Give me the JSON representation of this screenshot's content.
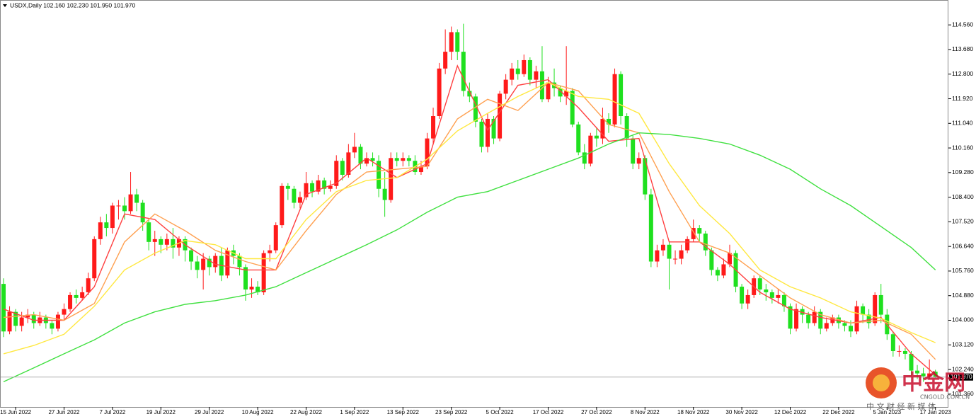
{
  "chart_data": {
    "type": "candlestick",
    "title": "USDX,Daily 102.160 102.230 101.950 101.970",
    "categories": [
      null,
      null,
      "15 Jun 2022",
      null,
      null,
      null,
      null,
      null,
      null,
      null,
      "27 Jun 2022",
      null,
      null,
      null,
      null,
      null,
      null,
      null,
      "7 Jul 2022",
      null,
      null,
      null,
      null,
      null,
      null,
      null,
      "19 Jul 2022",
      null,
      null,
      null,
      null,
      null,
      null,
      null,
      "29 Jul 2022",
      null,
      null,
      null,
      null,
      null,
      null,
      null,
      "10 Aug 2022",
      null,
      null,
      null,
      null,
      null,
      null,
      null,
      "22 Aug 2022",
      null,
      null,
      null,
      null,
      null,
      null,
      null,
      "1 Sep 2022",
      null,
      null,
      null,
      null,
      null,
      null,
      null,
      "13 Sep 2022",
      null,
      null,
      null,
      null,
      null,
      null,
      null,
      "23 Sep 2022",
      null,
      null,
      null,
      null,
      null,
      null,
      null,
      "5 Oct 2022",
      null,
      null,
      null,
      null,
      null,
      null,
      null,
      "17 Oct 2022",
      null,
      null,
      null,
      null,
      null,
      null,
      null,
      "27 Oct 2022",
      null,
      null,
      null,
      null,
      null,
      null,
      null,
      "8 Nov 2022",
      null,
      null,
      null,
      null,
      null,
      null,
      null,
      "18 Nov 2022",
      null,
      null,
      null,
      null,
      null,
      null,
      null,
      "30 Nov 2022",
      null,
      null,
      null,
      null,
      null,
      null,
      null,
      "12 Dec 2022",
      null,
      null,
      null,
      null,
      null,
      null,
      null,
      "22 Dec 2022",
      null,
      null,
      null,
      null,
      null,
      null,
      null,
      "5 Jan 2023",
      null,
      null,
      null,
      null,
      null,
      null,
      null,
      "17 Jan 2023"
    ],
    "open": [
      105.3,
      103.6,
      104.3,
      103.8,
      104.1,
      104.2,
      103.9,
      104.1,
      103.9,
      103.7,
      104.2,
      104.4,
      104.9,
      104.8,
      105.0,
      105.5,
      106.9,
      107.5,
      107.3,
      108.1,
      108.1,
      107.9,
      108.5,
      108.2,
      107.5,
      106.8,
      106.9,
      106.7,
      106.9,
      106.6,
      106.9,
      106.5,
      106.1,
      105.8,
      106.2,
      105.9,
      106.3,
      105.6,
      106.5,
      106.3,
      105.9,
      105.1,
      105.2,
      105.0,
      106.4,
      106.5,
      107.4,
      108.8,
      108.7,
      108.2,
      108.4,
      108.9,
      108.6,
      109.0,
      108.7,
      108.8,
      109.7,
      109.2,
      110.0,
      110.2,
      109.6,
      109.8,
      109.7,
      108.7,
      108.3,
      109.8,
      109.7,
      109.8,
      109.7,
      109.3,
      109.5,
      110.5,
      111.3,
      113.0,
      113.6,
      114.3,
      113.6,
      112.2,
      112.0,
      111.1,
      110.2,
      111.2,
      110.5,
      112.1,
      112.6,
      113.0,
      112.8,
      113.3,
      112.6,
      112.9,
      111.9,
      112.5,
      112.3,
      112.0,
      112.2,
      111.0,
      110.0,
      109.6,
      110.6,
      110.5,
      111.2,
      111.0,
      112.8,
      111.3,
      110.5,
      109.6,
      109.8,
      108.5,
      106.1,
      106.5,
      106.7,
      106.2,
      106.2,
      106.5,
      106.9,
      107.3,
      107.1,
      106.5,
      105.8,
      105.6,
      106.0,
      106.4,
      105.2,
      104.6,
      104.9,
      105.5,
      105.1,
      105.0,
      104.8,
      104.9,
      104.5,
      103.7,
      104.4,
      104.2,
      103.9,
      104.3,
      103.7,
      103.9,
      104.1,
      103.9,
      103.8,
      103.6,
      104.5,
      104.2,
      103.9,
      104.9,
      104.2,
      103.5,
      102.9,
      102.9,
      102.8,
      102.2,
      102.1,
      102.0,
      102.16
    ],
    "high": [
      105.5,
      104.5,
      104.4,
      104.3,
      104.4,
      104.3,
      104.3,
      104.2,
      104.0,
      104.3,
      104.6,
      105.0,
      105.1,
      105.2,
      105.7,
      107.0,
      107.7,
      107.8,
      108.2,
      108.3,
      108.4,
      109.3,
      108.7,
      108.3,
      107.6,
      107.2,
      107.0,
      107.1,
      107.3,
      107.0,
      107.0,
      106.6,
      106.3,
      106.4,
      106.3,
      106.4,
      106.6,
      106.6,
      106.7,
      106.4,
      106.0,
      105.5,
      105.4,
      106.5,
      106.7,
      107.5,
      108.9,
      108.9,
      108.8,
      108.6,
      109.3,
      109.0,
      109.2,
      109.1,
      109.0,
      109.9,
      109.8,
      110.3,
      110.7,
      110.3,
      110.0,
      110.0,
      109.9,
      109.3,
      110.0,
      110.0,
      110.0,
      109.9,
      109.9,
      109.7,
      110.7,
      111.6,
      113.2,
      114.4,
      114.5,
      114.4,
      114.6,
      112.5,
      112.1,
      111.2,
      111.4,
      111.3,
      112.2,
      112.8,
      113.2,
      113.3,
      113.5,
      113.4,
      113.1,
      113.8,
      112.7,
      113.0,
      112.4,
      113.8,
      112.3,
      111.1,
      110.3,
      110.7,
      110.9,
      111.6,
      111.4,
      113.0,
      112.9,
      111.4,
      110.6,
      110.0,
      109.9,
      108.7,
      106.7,
      106.9,
      106.8,
      106.5,
      106.7,
      107.0,
      107.6,
      107.4,
      107.2,
      106.6,
      105.9,
      106.2,
      106.7,
      106.5,
      105.3,
      105.1,
      105.6,
      105.6,
      105.3,
      105.1,
      105.1,
      105.0,
      104.6,
      104.6,
      104.5,
      104.3,
      104.5,
      104.4,
      104.1,
      104.2,
      104.2,
      104.0,
      104.0,
      104.7,
      104.6,
      104.4,
      105.0,
      105.3,
      104.4,
      103.6,
      103.1,
      103.0,
      102.9,
      102.4,
      102.3,
      102.6,
      102.23
    ],
    "low": [
      103.4,
      103.5,
      103.6,
      103.6,
      103.9,
      103.7,
      103.8,
      103.7,
      103.5,
      103.6,
      104.0,
      104.3,
      104.6,
      104.7,
      104.9,
      105.4,
      106.7,
      107.0,
      107.1,
      107.6,
      107.6,
      107.8,
      107.9,
      107.2,
      106.5,
      106.3,
      106.4,
      106.5,
      106.2,
      106.3,
      106.1,
      105.8,
      105.5,
      105.1,
      105.6,
      105.7,
      105.4,
      105.5,
      106.0,
      105.6,
      104.7,
      104.8,
      104.9,
      104.9,
      106.1,
      106.4,
      107.3,
      108.3,
      108.0,
      108.0,
      108.3,
      108.4,
      108.5,
      108.5,
      108.6,
      108.7,
      109.0,
      109.1,
      109.8,
      109.4,
      109.5,
      109.5,
      108.4,
      107.7,
      108.2,
      109.5,
      109.5,
      109.5,
      109.2,
      109.2,
      109.4,
      110.3,
      111.2,
      112.8,
      113.3,
      113.3,
      112.0,
      111.8,
      110.9,
      110.0,
      110.0,
      110.3,
      110.4,
      111.9,
      112.4,
      112.6,
      112.7,
      112.4,
      112.3,
      111.8,
      111.8,
      112.0,
      111.8,
      111.7,
      110.9,
      109.9,
      109.4,
      109.5,
      110.2,
      110.3,
      110.7,
      110.9,
      111.0,
      110.2,
      109.4,
      109.4,
      108.3,
      105.9,
      105.9,
      106.3,
      105.1,
      106.0,
      106.0,
      106.4,
      106.8,
      106.8,
      106.3,
      105.6,
      105.4,
      105.5,
      105.9,
      105.0,
      104.4,
      104.4,
      104.8,
      104.9,
      104.7,
      104.6,
      104.6,
      104.3,
      103.5,
      103.6,
      103.9,
      103.7,
      103.8,
      103.5,
      103.6,
      103.8,
      103.7,
      103.6,
      103.4,
      103.5,
      103.9,
      103.7,
      103.8,
      103.9,
      103.3,
      102.7,
      102.7,
      102.6,
      102.0,
      101.9,
      101.8,
      101.9,
      101.95
    ],
    "close": [
      103.6,
      104.3,
      103.8,
      104.1,
      104.2,
      103.9,
      104.1,
      103.9,
      103.7,
      104.2,
      104.4,
      104.9,
      104.8,
      105.0,
      105.5,
      106.9,
      107.5,
      107.3,
      108.1,
      108.1,
      107.9,
      108.5,
      108.2,
      107.5,
      106.8,
      106.9,
      106.7,
      106.9,
      106.6,
      106.9,
      106.5,
      106.1,
      105.8,
      106.2,
      105.9,
      106.3,
      105.6,
      106.5,
      106.3,
      105.9,
      105.1,
      105.2,
      105.0,
      106.4,
      106.5,
      107.4,
      108.8,
      108.7,
      108.2,
      108.4,
      108.9,
      108.6,
      109.0,
      108.7,
      108.8,
      109.7,
      109.2,
      110.0,
      110.2,
      109.6,
      109.8,
      109.7,
      108.7,
      108.3,
      109.8,
      109.7,
      109.8,
      109.7,
      109.3,
      109.5,
      110.5,
      111.3,
      113.0,
      113.6,
      114.3,
      113.6,
      112.2,
      112.0,
      111.1,
      110.2,
      111.2,
      110.5,
      112.1,
      112.6,
      113.0,
      112.8,
      113.3,
      112.6,
      112.9,
      111.9,
      112.5,
      112.3,
      112.0,
      112.2,
      111.0,
      110.0,
      109.6,
      110.6,
      110.5,
      111.2,
      111.0,
      112.8,
      111.3,
      110.5,
      109.6,
      109.8,
      108.5,
      106.1,
      106.5,
      106.7,
      106.2,
      106.2,
      106.5,
      106.9,
      107.3,
      107.1,
      106.5,
      105.8,
      105.6,
      106.0,
      106.4,
      105.2,
      104.6,
      104.9,
      105.5,
      105.1,
      105.0,
      104.8,
      104.9,
      104.5,
      103.7,
      104.4,
      104.2,
      103.9,
      104.3,
      103.7,
      103.9,
      104.1,
      103.9,
      103.8,
      103.6,
      104.5,
      104.2,
      103.9,
      104.9,
      104.2,
      103.5,
      102.9,
      102.9,
      102.8,
      102.2,
      102.1,
      102.0,
      102.1,
      101.97
    ],
    "up_color": "#ff1a1a",
    "down_color": "#1fe01f",
    "series": [
      {
        "color": "#ff4040",
        "x": [
          0,
          5,
          10,
          15,
          20,
          25,
          30,
          35,
          40,
          45,
          50,
          55,
          60,
          65,
          70,
          75,
          80,
          85,
          90,
          95,
          100,
          105,
          110,
          115,
          120,
          125,
          130,
          135,
          140,
          145,
          150,
          154
        ],
        "values": [
          104.4,
          104.0,
          104.0,
          105.2,
          107.8,
          107.6,
          106.7,
          106.0,
          105.8,
          105.8,
          108.5,
          108.9,
          109.8,
          109.1,
          109.6,
          113.1,
          110.8,
          112.4,
          112.6,
          111.6,
          110.4,
          110.5,
          106.8,
          106.8,
          106.0,
          105.0,
          104.4,
          104.1,
          103.9,
          104.1,
          102.8,
          102.05
        ]
      },
      {
        "color": "#ffa050",
        "x": [
          0,
          5,
          10,
          15,
          20,
          25,
          30,
          35,
          40,
          45,
          50,
          55,
          60,
          65,
          70,
          75,
          80,
          85,
          90,
          95,
          100,
          105,
          110,
          115,
          120,
          125,
          130,
          135,
          140,
          145,
          150,
          154
        ],
        "values": [
          104.1,
          104.2,
          104.0,
          104.6,
          106.8,
          107.8,
          107.2,
          106.5,
          106.1,
          105.8,
          107.2,
          108.5,
          109.3,
          109.4,
          109.5,
          111.2,
          111.9,
          111.5,
          112.5,
          112.2,
          111.0,
          110.7,
          108.6,
          106.8,
          106.4,
          105.6,
          104.8,
          104.2,
          103.9,
          104.0,
          103.5,
          102.6
        ]
      },
      {
        "color": "#ffe840",
        "x": [
          0,
          5,
          10,
          15,
          20,
          25,
          30,
          35,
          40,
          45,
          50,
          55,
          60,
          65,
          70,
          75,
          80,
          85,
          90,
          95,
          100,
          105,
          110,
          115,
          120,
          125,
          130,
          135,
          140,
          145,
          150,
          154
        ],
        "values": [
          102.8,
          103.1,
          103.5,
          104.5,
          105.8,
          106.4,
          106.85,
          106.7,
          106.2,
          106.2,
          107.6,
          108.6,
          109.0,
          109.1,
          109.76,
          110.77,
          111.4,
          112.0,
          112.5,
          112.0,
          111.9,
          111.4,
          109.6,
          108.1,
          107.1,
          105.8,
          105.2,
          104.8,
          104.3,
          104.07,
          103.56,
          103.2
        ]
      },
      {
        "color": "#40e040",
        "x": [
          0,
          5,
          10,
          15,
          20,
          25,
          30,
          35,
          40,
          45,
          50,
          55,
          60,
          65,
          70,
          75,
          80,
          85,
          90,
          95,
          100,
          105,
          110,
          115,
          120,
          125,
          130,
          135,
          140,
          145,
          150,
          154
        ],
        "values": [
          101.8,
          102.3,
          102.8,
          103.3,
          103.9,
          104.3,
          104.57,
          104.7,
          104.9,
          105.2,
          105.7,
          106.2,
          106.7,
          107.23,
          107.86,
          108.4,
          108.6,
          109.0,
          109.4,
          109.8,
          110.3,
          110.7,
          110.64,
          110.5,
          110.3,
          109.9,
          109.4,
          108.7,
          108.1,
          107.35,
          106.6,
          105.8
        ]
      }
    ],
    "ylim": [
      100.9,
      115.45
    ],
    "yticks": [
      {
        "value": 114.56,
        "label": "114.560"
      },
      {
        "value": 113.68,
        "label": "113.680"
      },
      {
        "value": 112.8,
        "label": "112.800"
      },
      {
        "value": 111.92,
        "label": "111.920"
      },
      {
        "value": 111.04,
        "label": "111.040"
      },
      {
        "value": 110.16,
        "label": "110.160"
      },
      {
        "value": 109.28,
        "label": "109.280"
      },
      {
        "value": 108.4,
        "label": "108.400"
      },
      {
        "value": 107.52,
        "label": "107.520"
      },
      {
        "value": 106.64,
        "label": "106.640"
      },
      {
        "value": 105.76,
        "label": "105.760"
      },
      {
        "value": 104.88,
        "label": "104.880"
      },
      {
        "value": 104.0,
        "label": "104.000"
      },
      {
        "value": 103.12,
        "label": "103.120"
      },
      {
        "value": 102.24,
        "label": "102.240"
      },
      {
        "value": 101.36,
        "label": "101.360"
      }
    ],
    "price_line": {
      "value": 101.97,
      "label": "101.970"
    },
    "grid": false
  },
  "watermark": {
    "name": "中金网",
    "site": "CNGOLD.COM.CN",
    "slogan": "中 文 财 经 新 媒 体"
  }
}
